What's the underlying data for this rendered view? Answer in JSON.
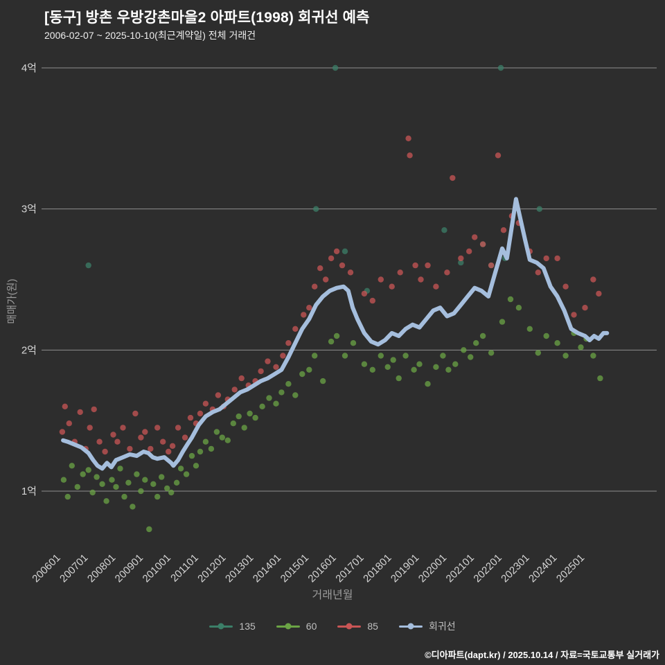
{
  "footer": {
    "credit": "©디아파트(dapt.kr) / 2025.10.14 / 자료=국토교통부 실거래가"
  },
  "colors": {
    "background": "#2d2d2d",
    "grid": "#8f8f8f",
    "tick_text": "#d6d6d6",
    "axis_title": "#9c9c9c",
    "title_text": "#ffffff",
    "legend_text": "#c0c0c0"
  },
  "chart_data": {
    "type": "scatter",
    "title": "[동구] 방촌 우방강촌마을2 아파트(1998) 회귀선 예측",
    "subtitle": "2006-02-07 ~ 2025-10-10(최근계약일) 전체 거래건",
    "xlabel": "거래년월",
    "ylabel": "매매가(원)",
    "x_ticks": [
      "200601",
      "200701",
      "200801",
      "200901",
      "201001",
      "201101",
      "201201",
      "201301",
      "201401",
      "201501",
      "201601",
      "201701",
      "201801",
      "201901",
      "202001",
      "202101",
      "202201",
      "202301",
      "202401",
      "202501"
    ],
    "y_ticks": [
      "1억",
      "2억",
      "3억",
      "4억"
    ],
    "y_unit_eok": 100000000,
    "xlim": [
      2005.3,
      2027.6
    ],
    "ylim_eok": [
      0.6,
      4.1
    ],
    "grid": "horizontal",
    "legend_position": "bottom",
    "series": [
      {
        "name": "135",
        "type": "scatter",
        "color": "#3c7f68",
        "points": [
          [
            2007.0,
            2.6
          ],
          [
            2015.25,
            3.0
          ],
          [
            2015.95,
            4.0
          ],
          [
            2016.3,
            2.7
          ],
          [
            2017.1,
            2.42
          ],
          [
            2019.9,
            2.85
          ],
          [
            2020.5,
            2.62
          ],
          [
            2021.3,
            2.75
          ],
          [
            2021.6,
            2.6
          ],
          [
            2021.95,
            4.0
          ],
          [
            2022.1,
            2.65
          ],
          [
            2023.35,
            3.0
          ]
        ]
      },
      {
        "name": "60",
        "type": "scatter",
        "color": "#6ba445",
        "points": [
          [
            2006.1,
            1.08
          ],
          [
            2006.25,
            0.96
          ],
          [
            2006.4,
            1.18
          ],
          [
            2006.6,
            1.03
          ],
          [
            2006.8,
            1.12
          ],
          [
            2007.0,
            1.15
          ],
          [
            2007.15,
            0.99
          ],
          [
            2007.3,
            1.1
          ],
          [
            2007.5,
            1.05
          ],
          [
            2007.65,
            0.93
          ],
          [
            2007.85,
            1.08
          ],
          [
            2008.0,
            1.03
          ],
          [
            2008.15,
            1.16
          ],
          [
            2008.3,
            0.96
          ],
          [
            2008.45,
            1.06
          ],
          [
            2008.6,
            0.89
          ],
          [
            2008.75,
            1.12
          ],
          [
            2008.9,
            1.0
          ],
          [
            2009.05,
            1.08
          ],
          [
            2009.2,
            0.73
          ],
          [
            2009.35,
            1.05
          ],
          [
            2009.5,
            0.96
          ],
          [
            2009.65,
            1.1
          ],
          [
            2009.85,
            1.02
          ],
          [
            2010.0,
            0.99
          ],
          [
            2010.2,
            1.06
          ],
          [
            2010.35,
            1.16
          ],
          [
            2010.55,
            1.12
          ],
          [
            2010.75,
            1.25
          ],
          [
            2010.9,
            1.18
          ],
          [
            2011.05,
            1.28
          ],
          [
            2011.25,
            1.35
          ],
          [
            2011.45,
            1.3
          ],
          [
            2011.65,
            1.42
          ],
          [
            2011.85,
            1.38
          ],
          [
            2012.05,
            1.36
          ],
          [
            2012.25,
            1.48
          ],
          [
            2012.45,
            1.53
          ],
          [
            2012.65,
            1.45
          ],
          [
            2012.85,
            1.55
          ],
          [
            2013.05,
            1.52
          ],
          [
            2013.3,
            1.6
          ],
          [
            2013.55,
            1.66
          ],
          [
            2013.8,
            1.62
          ],
          [
            2014.0,
            1.7
          ],
          [
            2014.25,
            1.76
          ],
          [
            2014.5,
            1.68
          ],
          [
            2014.75,
            1.83
          ],
          [
            2015.0,
            1.86
          ],
          [
            2015.2,
            1.96
          ],
          [
            2015.5,
            1.78
          ],
          [
            2015.8,
            2.06
          ],
          [
            2016.0,
            2.1
          ],
          [
            2016.3,
            1.96
          ],
          [
            2016.6,
            2.05
          ],
          [
            2017.0,
            1.9
          ],
          [
            2017.3,
            1.86
          ],
          [
            2017.6,
            1.96
          ],
          [
            2017.85,
            1.88
          ],
          [
            2018.05,
            1.93
          ],
          [
            2018.25,
            1.8
          ],
          [
            2018.5,
            1.96
          ],
          [
            2018.8,
            1.86
          ],
          [
            2019.0,
            1.9
          ],
          [
            2019.3,
            1.76
          ],
          [
            2019.6,
            1.88
          ],
          [
            2019.85,
            1.96
          ],
          [
            2020.05,
            1.86
          ],
          [
            2020.3,
            1.9
          ],
          [
            2020.6,
            2.0
          ],
          [
            2020.85,
            1.95
          ],
          [
            2021.05,
            2.05
          ],
          [
            2021.3,
            2.1
          ],
          [
            2021.6,
            1.98
          ],
          [
            2022.0,
            2.2
          ],
          [
            2022.3,
            2.36
          ],
          [
            2022.6,
            2.3
          ],
          [
            2023.0,
            2.15
          ],
          [
            2023.3,
            1.98
          ],
          [
            2023.6,
            2.1
          ],
          [
            2024.0,
            2.05
          ],
          [
            2024.3,
            1.96
          ],
          [
            2024.6,
            2.12
          ],
          [
            2024.85,
            2.02
          ],
          [
            2025.05,
            2.08
          ],
          [
            2025.3,
            1.96
          ],
          [
            2025.55,
            1.8
          ]
        ]
      },
      {
        "name": "85",
        "type": "scatter",
        "color": "#c95555",
        "points": [
          [
            2006.05,
            1.42
          ],
          [
            2006.15,
            1.6
          ],
          [
            2006.3,
            1.48
          ],
          [
            2006.5,
            1.35
          ],
          [
            2006.7,
            1.56
          ],
          [
            2006.9,
            1.3
          ],
          [
            2007.05,
            1.45
          ],
          [
            2007.2,
            1.58
          ],
          [
            2007.4,
            1.35
          ],
          [
            2007.6,
            1.28
          ],
          [
            2007.9,
            1.4
          ],
          [
            2008.05,
            1.35
          ],
          [
            2008.25,
            1.45
          ],
          [
            2008.5,
            1.3
          ],
          [
            2008.7,
            1.55
          ],
          [
            2008.9,
            1.38
          ],
          [
            2009.05,
            1.42
          ],
          [
            2009.25,
            1.3
          ],
          [
            2009.5,
            1.45
          ],
          [
            2009.7,
            1.35
          ],
          [
            2009.9,
            1.28
          ],
          [
            2010.05,
            1.32
          ],
          [
            2010.25,
            1.45
          ],
          [
            2010.5,
            1.38
          ],
          [
            2010.7,
            1.52
          ],
          [
            2010.9,
            1.48
          ],
          [
            2011.05,
            1.55
          ],
          [
            2011.25,
            1.62
          ],
          [
            2011.5,
            1.58
          ],
          [
            2011.7,
            1.68
          ],
          [
            2011.9,
            1.6
          ],
          [
            2012.05,
            1.65
          ],
          [
            2012.3,
            1.72
          ],
          [
            2012.55,
            1.8
          ],
          [
            2012.8,
            1.75
          ],
          [
            2013.05,
            1.78
          ],
          [
            2013.25,
            1.85
          ],
          [
            2013.5,
            1.92
          ],
          [
            2013.8,
            1.88
          ],
          [
            2014.05,
            1.96
          ],
          [
            2014.25,
            2.05
          ],
          [
            2014.5,
            2.15
          ],
          [
            2014.8,
            2.25
          ],
          [
            2015.0,
            2.3
          ],
          [
            2015.2,
            2.45
          ],
          [
            2015.4,
            2.58
          ],
          [
            2015.6,
            2.5
          ],
          [
            2015.8,
            2.65
          ],
          [
            2016.0,
            2.7
          ],
          [
            2016.2,
            2.6
          ],
          [
            2016.5,
            2.55
          ],
          [
            2017.0,
            2.4
          ],
          [
            2017.3,
            2.35
          ],
          [
            2017.6,
            2.5
          ],
          [
            2018.0,
            2.45
          ],
          [
            2018.3,
            2.55
          ],
          [
            2018.6,
            3.5
          ],
          [
            2018.65,
            3.38
          ],
          [
            2018.85,
            2.6
          ],
          [
            2019.05,
            2.5
          ],
          [
            2019.3,
            2.6
          ],
          [
            2019.6,
            2.45
          ],
          [
            2020.0,
            2.55
          ],
          [
            2020.2,
            3.22
          ],
          [
            2020.5,
            2.65
          ],
          [
            2020.8,
            2.7
          ],
          [
            2021.0,
            2.8
          ],
          [
            2021.3,
            2.75
          ],
          [
            2021.6,
            2.6
          ],
          [
            2021.85,
            3.38
          ],
          [
            2022.05,
            2.85
          ],
          [
            2022.35,
            2.95
          ],
          [
            2022.6,
            2.9
          ],
          [
            2023.0,
            2.7
          ],
          [
            2023.3,
            2.55
          ],
          [
            2023.6,
            2.65
          ],
          [
            2024.0,
            2.65
          ],
          [
            2024.3,
            2.45
          ],
          [
            2024.6,
            2.25
          ],
          [
            2025.0,
            2.3
          ],
          [
            2025.3,
            2.5
          ],
          [
            2025.5,
            2.4
          ]
        ]
      },
      {
        "name": "회귀선",
        "type": "line",
        "color": "#a5bedd",
        "points": [
          [
            2006.08,
            1.36
          ],
          [
            2006.25,
            1.35
          ],
          [
            2006.5,
            1.33
          ],
          [
            2006.75,
            1.31
          ],
          [
            2007.0,
            1.27
          ],
          [
            2007.17,
            1.22
          ],
          [
            2007.33,
            1.18
          ],
          [
            2007.5,
            1.16
          ],
          [
            2007.67,
            1.2
          ],
          [
            2007.83,
            1.17
          ],
          [
            2008.0,
            1.22
          ],
          [
            2008.25,
            1.24
          ],
          [
            2008.5,
            1.26
          ],
          [
            2008.75,
            1.25
          ],
          [
            2009.0,
            1.28
          ],
          [
            2009.17,
            1.27
          ],
          [
            2009.33,
            1.24
          ],
          [
            2009.5,
            1.23
          ],
          [
            2009.75,
            1.24
          ],
          [
            2010.0,
            1.2
          ],
          [
            2010.08,
            1.18
          ],
          [
            2010.25,
            1.22
          ],
          [
            2010.42,
            1.28
          ],
          [
            2010.58,
            1.33
          ],
          [
            2010.75,
            1.38
          ],
          [
            2011.0,
            1.47
          ],
          [
            2011.25,
            1.53
          ],
          [
            2011.5,
            1.56
          ],
          [
            2011.75,
            1.58
          ],
          [
            2012.0,
            1.62
          ],
          [
            2012.25,
            1.66
          ],
          [
            2012.5,
            1.7
          ],
          [
            2012.75,
            1.72
          ],
          [
            2013.0,
            1.75
          ],
          [
            2013.25,
            1.78
          ],
          [
            2013.5,
            1.8
          ],
          [
            2013.75,
            1.83
          ],
          [
            2014.0,
            1.86
          ],
          [
            2014.25,
            1.95
          ],
          [
            2014.5,
            2.05
          ],
          [
            2014.75,
            2.15
          ],
          [
            2015.0,
            2.22
          ],
          [
            2015.25,
            2.32
          ],
          [
            2015.5,
            2.38
          ],
          [
            2015.75,
            2.42
          ],
          [
            2016.0,
            2.44
          ],
          [
            2016.25,
            2.45
          ],
          [
            2016.42,
            2.42
          ],
          [
            2016.58,
            2.3
          ],
          [
            2016.75,
            2.22
          ],
          [
            2017.0,
            2.12
          ],
          [
            2017.25,
            2.06
          ],
          [
            2017.5,
            2.04
          ],
          [
            2017.75,
            2.07
          ],
          [
            2018.0,
            2.12
          ],
          [
            2018.25,
            2.1
          ],
          [
            2018.5,
            2.15
          ],
          [
            2018.75,
            2.18
          ],
          [
            2019.0,
            2.16
          ],
          [
            2019.25,
            2.22
          ],
          [
            2019.5,
            2.28
          ],
          [
            2019.75,
            2.3
          ],
          [
            2020.0,
            2.24
          ],
          [
            2020.25,
            2.26
          ],
          [
            2020.5,
            2.32
          ],
          [
            2020.75,
            2.38
          ],
          [
            2021.0,
            2.44
          ],
          [
            2021.25,
            2.42
          ],
          [
            2021.5,
            2.38
          ],
          [
            2021.75,
            2.55
          ],
          [
            2022.0,
            2.72
          ],
          [
            2022.17,
            2.65
          ],
          [
            2022.33,
            2.85
          ],
          [
            2022.5,
            3.07
          ],
          [
            2022.67,
            2.92
          ],
          [
            2022.83,
            2.78
          ],
          [
            2023.0,
            2.64
          ],
          [
            2023.25,
            2.62
          ],
          [
            2023.5,
            2.58
          ],
          [
            2023.75,
            2.45
          ],
          [
            2024.0,
            2.38
          ],
          [
            2024.25,
            2.28
          ],
          [
            2024.5,
            2.15
          ],
          [
            2024.75,
            2.12
          ],
          [
            2025.0,
            2.1
          ],
          [
            2025.17,
            2.07
          ],
          [
            2025.33,
            2.1
          ],
          [
            2025.5,
            2.08
          ],
          [
            2025.67,
            2.12
          ],
          [
            2025.8,
            2.12
          ]
        ]
      }
    ]
  }
}
